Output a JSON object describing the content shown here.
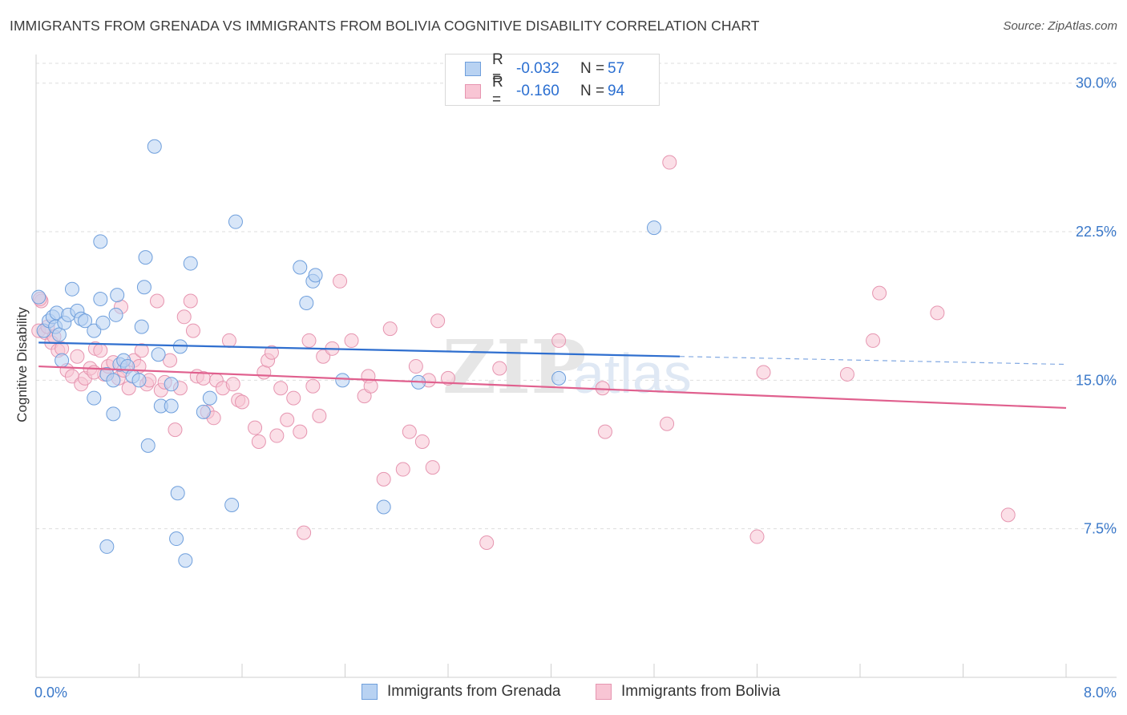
{
  "title": "IMMIGRANTS FROM GRENADA VS IMMIGRANTS FROM BOLIVIA COGNITIVE DISABILITY CORRELATION CHART",
  "source": "Source: ZipAtlas.com",
  "legend": {
    "r_label": "R =",
    "n_label": "N =",
    "grenada": {
      "r": "-0.032",
      "n": "57"
    },
    "bolivia": {
      "r": "-0.160",
      "n": "94"
    }
  },
  "watermark": "ZIPatlas",
  "colors": {
    "grenada_fill": "#b8d2f2",
    "grenada_edge": "#6f9fdc",
    "grenada_line": "#2f6fcf",
    "bolivia_fill": "#f8c5d4",
    "bolivia_edge": "#e695b0",
    "bolivia_line": "#e0608e",
    "tick_label": "#3a78c9"
  },
  "chart_data": {
    "type": "scatter",
    "xlabel": "",
    "ylabel": "Cognitive Disability",
    "xlim": [
      0,
      8
    ],
    "ylim": [
      0,
      31
    ],
    "x_tick_labels": [
      "0.0%",
      "8.0%"
    ],
    "y_ticks": [
      7.5,
      15.0,
      22.5,
      30.0
    ],
    "y_tick_labels": [
      "7.5%",
      "15.0%",
      "22.5%",
      "30.0%"
    ],
    "grid": true,
    "legend_position": "top-center",
    "series": [
      {
        "name": "Immigrants from Grenada",
        "trend": {
          "x": [
            0.02,
            5.0
          ],
          "y": [
            16.9,
            16.2
          ],
          "dashed_to": [
            8.0,
            15.8
          ]
        },
        "points": [
          [
            0.02,
            19.2
          ],
          [
            0.06,
            17.5
          ],
          [
            0.1,
            18.0
          ],
          [
            0.13,
            18.2
          ],
          [
            0.16,
            18.4
          ],
          [
            0.15,
            17.7
          ],
          [
            0.18,
            17.3
          ],
          [
            0.2,
            16.0
          ],
          [
            0.22,
            17.9
          ],
          [
            0.25,
            18.3
          ],
          [
            0.28,
            19.6
          ],
          [
            0.32,
            18.5
          ],
          [
            0.35,
            18.1
          ],
          [
            0.38,
            18.0
          ],
          [
            0.45,
            17.5
          ],
          [
            0.45,
            14.1
          ],
          [
            0.5,
            19.1
          ],
          [
            0.52,
            17.9
          ],
          [
            0.55,
            15.3
          ],
          [
            0.6,
            15.0
          ],
          [
            0.62,
            18.3
          ],
          [
            0.63,
            19.3
          ],
          [
            0.65,
            15.8
          ],
          [
            0.68,
            16.0
          ],
          [
            0.71,
            15.7
          ],
          [
            0.75,
            15.2
          ],
          [
            0.8,
            15.0
          ],
          [
            0.82,
            17.7
          ],
          [
            0.84,
            19.7
          ],
          [
            0.85,
            21.2
          ],
          [
            0.87,
            11.7
          ],
          [
            0.92,
            26.8
          ],
          [
            0.95,
            16.3
          ],
          [
            0.97,
            13.7
          ],
          [
            1.05,
            13.7
          ],
          [
            1.05,
            14.8
          ],
          [
            1.09,
            7.0
          ],
          [
            1.12,
            16.7
          ],
          [
            1.16,
            5.9
          ],
          [
            1.2,
            20.9
          ],
          [
            1.3,
            13.4
          ],
          [
            1.52,
            8.7
          ],
          [
            1.55,
            23.0
          ],
          [
            2.05,
            20.7
          ],
          [
            2.1,
            18.9
          ],
          [
            2.15,
            20.0
          ],
          [
            2.17,
            20.3
          ],
          [
            2.38,
            15.0
          ],
          [
            2.7,
            8.6
          ],
          [
            2.97,
            14.9
          ],
          [
            0.55,
            6.6
          ],
          [
            0.6,
            13.3
          ],
          [
            1.1,
            9.3
          ],
          [
            4.06,
            15.1
          ],
          [
            4.8,
            22.7
          ],
          [
            1.35,
            14.1
          ],
          [
            0.5,
            22.0
          ]
        ]
      },
      {
        "name": "Immigrants from Bolivia",
        "trend": {
          "x": [
            0.02,
            8.0
          ],
          "y": [
            15.7,
            13.6
          ]
        },
        "points": [
          [
            0.02,
            17.5
          ],
          [
            0.04,
            19.0
          ],
          [
            0.07,
            17.4
          ],
          [
            0.09,
            17.7
          ],
          [
            0.12,
            16.9
          ],
          [
            0.14,
            17.2
          ],
          [
            0.17,
            16.5
          ],
          [
            0.2,
            16.6
          ],
          [
            0.24,
            15.5
          ],
          [
            0.28,
            15.2
          ],
          [
            0.32,
            16.2
          ],
          [
            0.35,
            14.8
          ],
          [
            0.38,
            15.1
          ],
          [
            0.42,
            15.6
          ],
          [
            0.46,
            16.6
          ],
          [
            0.5,
            16.5
          ],
          [
            0.53,
            15.3
          ],
          [
            0.56,
            15.7
          ],
          [
            0.6,
            15.9
          ],
          [
            0.64,
            15.1
          ],
          [
            0.66,
            18.7
          ],
          [
            0.68,
            15.5
          ],
          [
            0.72,
            14.6
          ],
          [
            0.76,
            16.0
          ],
          [
            0.8,
            15.7
          ],
          [
            0.82,
            16.5
          ],
          [
            0.86,
            14.8
          ],
          [
            0.88,
            15.0
          ],
          [
            0.94,
            19.0
          ],
          [
            0.97,
            14.5
          ],
          [
            1.0,
            14.9
          ],
          [
            1.04,
            16.0
          ],
          [
            1.08,
            12.5
          ],
          [
            1.12,
            14.6
          ],
          [
            1.15,
            18.2
          ],
          [
            1.2,
            19.0
          ],
          [
            1.22,
            17.5
          ],
          [
            1.25,
            15.2
          ],
          [
            1.3,
            15.1
          ],
          [
            1.33,
            13.4
          ],
          [
            1.38,
            13.1
          ],
          [
            1.4,
            15.0
          ],
          [
            1.45,
            14.6
          ],
          [
            1.5,
            17.0
          ],
          [
            1.53,
            14.8
          ],
          [
            1.57,
            14.0
          ],
          [
            1.6,
            13.9
          ],
          [
            1.7,
            12.6
          ],
          [
            1.73,
            11.9
          ],
          [
            1.77,
            15.4
          ],
          [
            1.8,
            16.0
          ],
          [
            1.83,
            16.4
          ],
          [
            1.87,
            12.2
          ],
          [
            1.9,
            14.6
          ],
          [
            1.95,
            13.0
          ],
          [
            2.0,
            14.1
          ],
          [
            2.05,
            12.4
          ],
          [
            2.08,
            7.3
          ],
          [
            2.12,
            17.0
          ],
          [
            2.15,
            14.7
          ],
          [
            2.2,
            13.2
          ],
          [
            2.23,
            16.2
          ],
          [
            2.3,
            16.6
          ],
          [
            2.36,
            20.0
          ],
          [
            2.45,
            17.0
          ],
          [
            2.55,
            14.2
          ],
          [
            2.58,
            15.2
          ],
          [
            2.6,
            14.7
          ],
          [
            2.7,
            10.0
          ],
          [
            2.75,
            17.6
          ],
          [
            2.85,
            10.5
          ],
          [
            2.9,
            12.4
          ],
          [
            2.95,
            15.7
          ],
          [
            3.0,
            11.9
          ],
          [
            3.05,
            15.0
          ],
          [
            3.08,
            10.6
          ],
          [
            3.12,
            18.0
          ],
          [
            3.2,
            15.1
          ],
          [
            3.5,
            6.8
          ],
          [
            3.6,
            15.6
          ],
          [
            4.06,
            17.0
          ],
          [
            4.4,
            14.6
          ],
          [
            4.42,
            12.4
          ],
          [
            4.9,
            12.8
          ],
          [
            4.92,
            26.0
          ],
          [
            5.6,
            7.1
          ],
          [
            5.65,
            15.4
          ],
          [
            6.3,
            15.3
          ],
          [
            6.5,
            17.0
          ],
          [
            6.55,
            19.4
          ],
          [
            7.0,
            18.4
          ],
          [
            7.55,
            8.2
          ],
          [
            0.03,
            19.1
          ],
          [
            0.45,
            15.4
          ]
        ]
      }
    ]
  },
  "bottom_legend": {
    "grenada": "Immigrants from Grenada",
    "bolivia": "Immigrants from Bolivia"
  }
}
